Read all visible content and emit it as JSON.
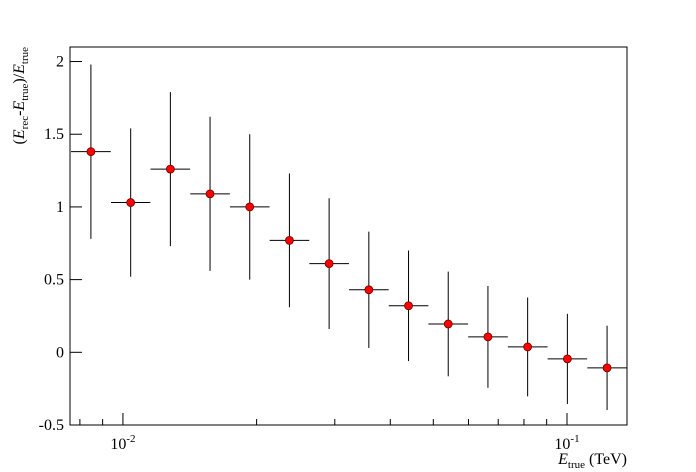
{
  "chart_data": {
    "type": "scatter",
    "log_x": true,
    "color": "#ff0000",
    "x": [
      0.00847,
      0.01041,
      0.01279,
      0.01571,
      0.0193,
      0.02371,
      0.02913,
      0.03579,
      0.04397,
      0.05402,
      0.06637,
      0.08154,
      0.1002,
      0.1231
    ],
    "x_low": [
      0.00764,
      0.0094,
      0.01154,
      0.01418,
      0.01742,
      0.0214,
      0.02629,
      0.0323,
      0.03968,
      0.04875,
      0.0599,
      0.07359,
      0.09043,
      0.1111
    ],
    "x_high": [
      0.00939,
      0.01153,
      0.01417,
      0.01741,
      0.02139,
      0.02628,
      0.03229,
      0.03967,
      0.04874,
      0.05989,
      0.07358,
      0.09042,
      0.111,
      0.1364
    ],
    "values": [
      1.38,
      1.03,
      1.26,
      1.09,
      1.0,
      0.77,
      0.61,
      0.43,
      0.32,
      0.195,
      0.106,
      0.037,
      -0.045,
      -0.107
    ],
    "yerr": [
      0.6,
      0.51,
      0.53,
      0.53,
      0.5,
      0.46,
      0.45,
      0.4,
      0.38,
      0.36,
      0.35,
      0.34,
      0.31,
      0.29
    ],
    "xlim": [
      0.0076,
      0.1365
    ],
    "ylim": [
      -0.5,
      2.1
    ],
    "yticks": [
      -0.5,
      0,
      0.5,
      1,
      1.5,
      2
    ],
    "xticks": [
      {
        "value": 0.01,
        "label": "10",
        "exponent": "-2"
      },
      {
        "value": 0.1,
        "label": "10",
        "exponent": "-1"
      }
    ],
    "xminor_ticks": [
      0.008,
      0.009,
      0.02,
      0.03,
      0.04,
      0.05,
      0.06,
      0.07,
      0.08,
      0.09
    ],
    "xlabel": [
      "E",
      "true",
      " (TeV)"
    ],
    "ylabel": [
      "(",
      "E",
      "rec",
      "-",
      "E",
      "true",
      ")/",
      "E",
      "true"
    ]
  }
}
